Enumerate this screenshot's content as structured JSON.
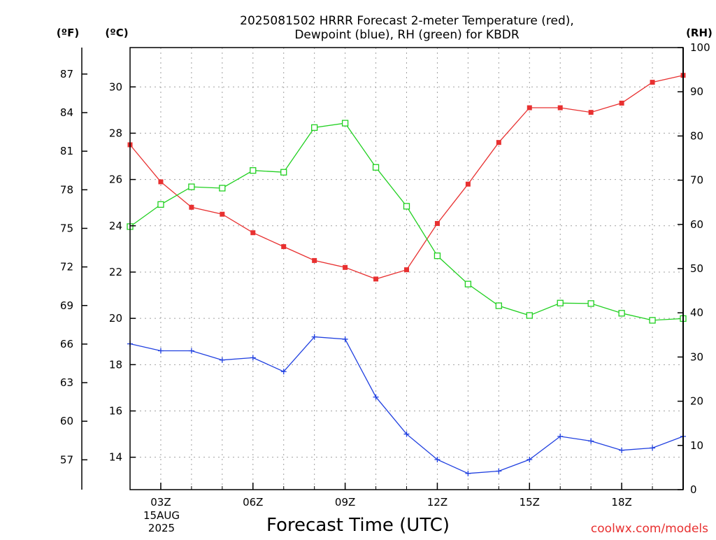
{
  "chart_data": {
    "type": "line",
    "title_line1": "2025081502 HRRR Forecast 2-meter Temperature (red),",
    "title_line2": "Dewpoint (blue), RH (green) for KBDR",
    "xlabel": "Forecast Time (UTC)",
    "credit": "coolwx.com/models",
    "left_unit_f": "(ºF)",
    "left_unit_c": "(ºC)",
    "right_unit": "(RH)",
    "x_hours": [
      2,
      3,
      4,
      5,
      6,
      7,
      8,
      9,
      10,
      11,
      12,
      13,
      14,
      15,
      16,
      17,
      18,
      19,
      20
    ],
    "xlim": [
      2,
      20
    ],
    "x_ticks": [
      {
        "hour": 3,
        "label": "03Z"
      },
      {
        "hour": 6,
        "label": "06Z"
      },
      {
        "hour": 9,
        "label": "09Z"
      },
      {
        "hour": 12,
        "label": "12Z"
      },
      {
        "hour": 15,
        "label": "15Z"
      },
      {
        "hour": 18,
        "label": "18Z"
      }
    ],
    "date_label_line1": "15AUG",
    "date_label_line2": "2025",
    "celsius_axis": {
      "ylim": [
        12.6,
        31.7
      ],
      "ticks": [
        14,
        16,
        18,
        20,
        22,
        24,
        26,
        28,
        30
      ]
    },
    "fahrenheit_axis": {
      "ticks": [
        57,
        60,
        63,
        66,
        69,
        72,
        75,
        78,
        81,
        84,
        87
      ]
    },
    "rh_axis": {
      "ylim": [
        0,
        100
      ],
      "ticks": [
        0,
        10,
        20,
        30,
        40,
        50,
        60,
        70,
        80,
        90,
        100
      ]
    },
    "series": [
      {
        "key": "temperature",
        "axis": "celsius",
        "color": "#e83030",
        "marker": "filled-square",
        "values": [
          27.5,
          25.9,
          24.8,
          24.5,
          23.7,
          23.1,
          22.5,
          22.2,
          21.7,
          22.1,
          24.1,
          25.8,
          27.6,
          29.1,
          29.1,
          28.9,
          29.3,
          30.2,
          30.5
        ]
      },
      {
        "key": "dewpoint",
        "axis": "celsius",
        "color": "#2040e0",
        "marker": "plus",
        "values": [
          18.9,
          18.6,
          18.6,
          18.2,
          18.3,
          17.7,
          19.2,
          19.1,
          16.6,
          15.0,
          13.9,
          13.3,
          13.4,
          13.9,
          14.9,
          14.7,
          14.3,
          14.4,
          14.9
        ]
      },
      {
        "key": "rh",
        "axis": "rh",
        "color": "#20d020",
        "marker": "open-square",
        "values": [
          59.5,
          64.5,
          68.5,
          68.2,
          72.2,
          71.8,
          81.9,
          82.9,
          72.9,
          64.1,
          52.9,
          46.5,
          41.6,
          39.4,
          42.2,
          42.1,
          39.9,
          38.3,
          38.7
        ]
      }
    ],
    "colors": {
      "grid": "#a0a0a0",
      "credit": "#e83030"
    }
  }
}
